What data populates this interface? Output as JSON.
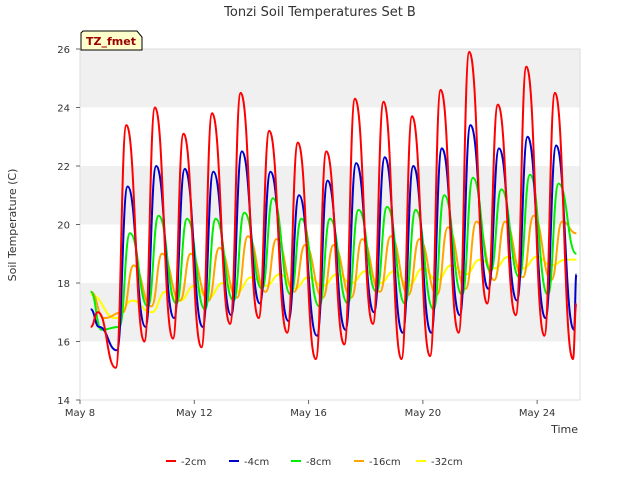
{
  "chart_data": {
    "type": "line",
    "title": "Tonzi Soil Temperatures Set B",
    "xlabel": "Time",
    "ylabel": "Soil Temperature (C)",
    "site_label": "TZ_fmet",
    "xlim": [
      "2024-05-08",
      "2024-05-25 12:00"
    ],
    "ylim": [
      14,
      26
    ],
    "y_ticks": [
      14,
      16,
      18,
      20,
      22,
      24,
      26
    ],
    "x_ticks": [
      {
        "date": "2024-05-08",
        "label": "May 8"
      },
      {
        "date": "2024-05-12",
        "label": "May 12"
      },
      {
        "date": "2024-05-16",
        "label": "May 16"
      },
      {
        "date": "2024-05-20",
        "label": "May 20"
      },
      {
        "date": "2024-05-24",
        "label": "May 24"
      }
    ],
    "grid": "horizontal alternating gray bands",
    "legend_position": "bottom",
    "series": [
      {
        "name": "-2cm",
        "color": "#ff0000",
        "x": [
          "2024-05-08 09:00",
          "2024-05-08 15:00",
          "2024-05-09 06:00",
          "2024-05-09 15:00",
          "2024-05-10 06:00",
          "2024-05-10 15:00",
          "2024-05-11 06:00",
          "2024-05-11 15:00",
          "2024-05-12 06:00",
          "2024-05-12 15:00",
          "2024-05-13 06:00",
          "2024-05-13 15:00",
          "2024-05-14 06:00",
          "2024-05-14 15:00",
          "2024-05-15 06:00",
          "2024-05-15 15:00",
          "2024-05-16 06:00",
          "2024-05-16 15:00",
          "2024-05-17 06:00",
          "2024-05-17 15:00",
          "2024-05-18 06:00",
          "2024-05-18 15:00",
          "2024-05-19 06:00",
          "2024-05-19 15:00",
          "2024-05-20 06:00",
          "2024-05-20 15:00",
          "2024-05-21 06:00",
          "2024-05-21 15:00",
          "2024-05-22 06:00",
          "2024-05-22 15:00",
          "2024-05-23 06:00",
          "2024-05-23 15:00",
          "2024-05-24 06:00",
          "2024-05-24 15:00",
          "2024-05-25 06:00",
          "2024-05-25 09:00"
        ],
        "y": [
          16.5,
          17.0,
          15.1,
          23.4,
          16.0,
          24.0,
          16.1,
          23.1,
          15.8,
          23.8,
          16.6,
          24.5,
          16.8,
          23.2,
          16.3,
          22.8,
          15.4,
          22.5,
          15.9,
          24.3,
          16.6,
          24.2,
          15.4,
          23.7,
          15.5,
          24.6,
          16.3,
          25.9,
          17.3,
          24.1,
          16.9,
          25.4,
          16.2,
          24.5,
          15.4,
          17.3
        ]
      },
      {
        "name": "-4cm",
        "color": "#0000cc",
        "x": [
          "2024-05-08 09:00",
          "2024-05-08 16:00",
          "2024-05-09 07:00",
          "2024-05-09 16:00",
          "2024-05-10 07:00",
          "2024-05-10 16:00",
          "2024-05-11 07:00",
          "2024-05-11 16:00",
          "2024-05-12 07:00",
          "2024-05-12 16:00",
          "2024-05-13 07:00",
          "2024-05-13 16:00",
          "2024-05-14 07:00",
          "2024-05-14 16:00",
          "2024-05-15 07:00",
          "2024-05-15 16:00",
          "2024-05-16 07:00",
          "2024-05-16 16:00",
          "2024-05-17 07:00",
          "2024-05-17 16:00",
          "2024-05-18 07:00",
          "2024-05-18 16:00",
          "2024-05-19 07:00",
          "2024-05-19 16:00",
          "2024-05-20 07:00",
          "2024-05-20 16:00",
          "2024-05-21 07:00",
          "2024-05-21 16:00",
          "2024-05-22 07:00",
          "2024-05-22 16:00",
          "2024-05-23 07:00",
          "2024-05-23 16:00",
          "2024-05-24 07:00",
          "2024-05-24 16:00",
          "2024-05-25 07:00",
          "2024-05-25 09:00"
        ],
        "y": [
          17.1,
          16.5,
          15.7,
          21.3,
          16.5,
          22.0,
          16.8,
          21.9,
          16.5,
          21.8,
          16.9,
          22.5,
          17.3,
          21.8,
          16.7,
          21.0,
          16.2,
          21.5,
          16.4,
          22.1,
          17.0,
          22.3,
          16.3,
          22.0,
          16.3,
          22.6,
          16.9,
          23.4,
          17.8,
          22.6,
          17.4,
          23.0,
          16.8,
          22.7,
          16.4,
          18.3
        ]
      },
      {
        "name": "-8cm",
        "color": "#00ee00",
        "x": [
          "2024-05-08 09:00",
          "2024-05-08 18:00",
          "2024-05-09 09:00",
          "2024-05-09 18:00",
          "2024-05-10 09:00",
          "2024-05-10 18:00",
          "2024-05-11 09:00",
          "2024-05-11 18:00",
          "2024-05-12 09:00",
          "2024-05-12 18:00",
          "2024-05-13 09:00",
          "2024-05-13 18:00",
          "2024-05-14 09:00",
          "2024-05-14 18:00",
          "2024-05-15 09:00",
          "2024-05-15 18:00",
          "2024-05-16 09:00",
          "2024-05-16 18:00",
          "2024-05-17 09:00",
          "2024-05-17 18:00",
          "2024-05-18 09:00",
          "2024-05-18 18:00",
          "2024-05-19 09:00",
          "2024-05-19 18:00",
          "2024-05-20 09:00",
          "2024-05-20 18:00",
          "2024-05-21 09:00",
          "2024-05-21 18:00",
          "2024-05-22 09:00",
          "2024-05-22 18:00",
          "2024-05-23 09:00",
          "2024-05-23 18:00",
          "2024-05-24 09:00",
          "2024-05-24 18:00",
          "2024-05-25 09:00"
        ],
        "y": [
          17.7,
          16.4,
          16.5,
          19.7,
          17.2,
          20.3,
          17.3,
          20.2,
          17.1,
          20.2,
          17.4,
          20.4,
          17.8,
          20.9,
          17.6,
          20.2,
          17.2,
          20.2,
          17.3,
          20.5,
          17.7,
          20.6,
          17.3,
          20.5,
          17.1,
          21.0,
          17.6,
          21.6,
          18.4,
          21.2,
          18.2,
          21.7,
          17.6,
          21.4,
          19.0
        ]
      },
      {
        "name": "-16cm",
        "color": "#ffa500",
        "x": [
          "2024-05-08 09:00",
          "2024-05-08 20:00",
          "2024-05-09 12:00",
          "2024-05-09 21:00",
          "2024-05-10 12:00",
          "2024-05-10 21:00",
          "2024-05-11 12:00",
          "2024-05-11 21:00",
          "2024-05-12 12:00",
          "2024-05-12 21:00",
          "2024-05-13 12:00",
          "2024-05-13 21:00",
          "2024-05-14 12:00",
          "2024-05-14 21:00",
          "2024-05-15 12:00",
          "2024-05-15 21:00",
          "2024-05-16 12:00",
          "2024-05-16 21:00",
          "2024-05-17 12:00",
          "2024-05-17 21:00",
          "2024-05-18 12:00",
          "2024-05-18 21:00",
          "2024-05-19 12:00",
          "2024-05-19 21:00",
          "2024-05-20 12:00",
          "2024-05-20 21:00",
          "2024-05-21 12:00",
          "2024-05-21 21:00",
          "2024-05-22 12:00",
          "2024-05-22 21:00",
          "2024-05-23 12:00",
          "2024-05-23 21:00",
          "2024-05-24 12:00",
          "2024-05-24 21:00",
          "2024-05-25 09:00"
        ],
        "y": [
          17.7,
          16.8,
          17.0,
          18.6,
          17.2,
          19.0,
          17.4,
          19.0,
          17.4,
          19.2,
          17.5,
          19.6,
          17.7,
          19.5,
          17.7,
          19.3,
          17.5,
          19.3,
          17.5,
          19.5,
          17.7,
          19.6,
          17.6,
          19.5,
          17.6,
          19.9,
          17.8,
          20.1,
          18.1,
          20.1,
          18.2,
          20.3,
          18.1,
          20.1,
          19.7
        ]
      },
      {
        "name": "-32cm",
        "color": "#ffff00",
        "x": [
          "2024-05-08 09:00",
          "2024-05-09 06:00",
          "2024-05-09 20:00",
          "2024-05-10 12:00",
          "2024-05-11 00:00",
          "2024-05-11 12:00",
          "2024-05-12 00:00",
          "2024-05-12 12:00",
          "2024-05-13 00:00",
          "2024-05-13 12:00",
          "2024-05-14 00:00",
          "2024-05-14 12:00",
          "2024-05-15 00:00",
          "2024-05-15 12:00",
          "2024-05-16 00:00",
          "2024-05-16 12:00",
          "2024-05-17 00:00",
          "2024-05-17 12:00",
          "2024-05-18 00:00",
          "2024-05-18 12:00",
          "2024-05-19 00:00",
          "2024-05-19 12:00",
          "2024-05-20 00:00",
          "2024-05-20 12:00",
          "2024-05-21 00:00",
          "2024-05-21 12:00",
          "2024-05-22 00:00",
          "2024-05-22 12:00",
          "2024-05-23 00:00",
          "2024-05-23 12:00",
          "2024-05-24 00:00",
          "2024-05-24 12:00",
          "2024-05-25 00:00",
          "2024-05-25 09:00"
        ],
        "y": [
          17.6,
          16.8,
          17.4,
          17.0,
          17.7,
          17.4,
          17.9,
          17.5,
          18.0,
          17.7,
          18.2,
          17.9,
          18.3,
          17.8,
          18.2,
          17.9,
          18.3,
          18.0,
          18.4,
          18.0,
          18.4,
          17.9,
          18.5,
          18.1,
          18.6,
          18.3,
          18.8,
          18.5,
          18.9,
          18.5,
          18.9,
          18.6,
          18.8,
          18.8
        ]
      }
    ]
  }
}
